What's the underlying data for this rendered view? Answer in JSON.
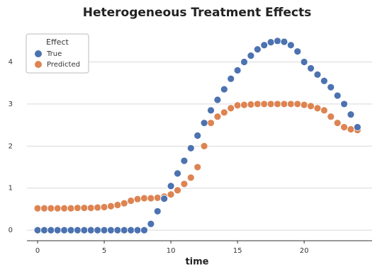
{
  "chart_data": {
    "type": "scatter",
    "title": "Heterogeneous Treatment Effects",
    "x_label": "time",
    "x": [
      0,
      0.5,
      1,
      1.5,
      2,
      2.5,
      3,
      3.5,
      4,
      4.5,
      5,
      5.5,
      6,
      6.5,
      7,
      7.5,
      8,
      8.5,
      9,
      9.5,
      10,
      10.5,
      11,
      11.5,
      12,
      12.5,
      13,
      13.5,
      14,
      14.5,
      15,
      15.5,
      16,
      16.5,
      17,
      17.5,
      18,
      18.5,
      19,
      19.5,
      20,
      20.5,
      21,
      21.5,
      22,
      22.5,
      23,
      23.5,
      24
    ],
    "series": [
      {
        "name": "True",
        "color": "#4c72b0",
        "values": [
          0,
          0,
          0,
          0,
          0,
          0,
          0,
          0,
          0,
          0,
          0,
          0,
          0,
          0,
          0,
          0,
          0,
          0.15,
          0.45,
          0.75,
          1.05,
          1.35,
          1.65,
          1.95,
          2.25,
          2.55,
          2.85,
          3.1,
          3.35,
          3.6,
          3.8,
          4.0,
          4.15,
          4.3,
          4.4,
          4.47,
          4.5,
          4.48,
          4.4,
          4.25,
          4.0,
          3.85,
          3.7,
          3.55,
          3.4,
          3.2,
          3.0,
          2.75,
          2.45
        ]
      },
      {
        "name": "Predicted",
        "color": "#dd8452",
        "values": [
          0.52,
          0.52,
          0.52,
          0.52,
          0.52,
          0.52,
          0.53,
          0.53,
          0.53,
          0.54,
          0.55,
          0.57,
          0.6,
          0.64,
          0.7,
          0.74,
          0.76,
          0.76,
          0.77,
          0.8,
          0.85,
          0.95,
          1.1,
          1.25,
          1.5,
          2.0,
          2.55,
          2.7,
          2.8,
          2.9,
          2.97,
          2.98,
          2.99,
          3.0,
          3.0,
          3.0,
          3.0,
          3.0,
          3.0,
          3.0,
          2.98,
          2.95,
          2.9,
          2.85,
          2.7,
          2.55,
          2.45,
          2.4,
          2.38
        ]
      }
    ],
    "legend_title": "Effect",
    "legend": "upper left",
    "xlim": [
      -0.8,
      25.1
    ],
    "ylim": [
      -0.25,
      4.8
    ],
    "xticks": [
      0,
      5,
      10,
      15,
      20
    ],
    "yticks": [
      0,
      1,
      2,
      3,
      4
    ],
    "grid": true
  }
}
